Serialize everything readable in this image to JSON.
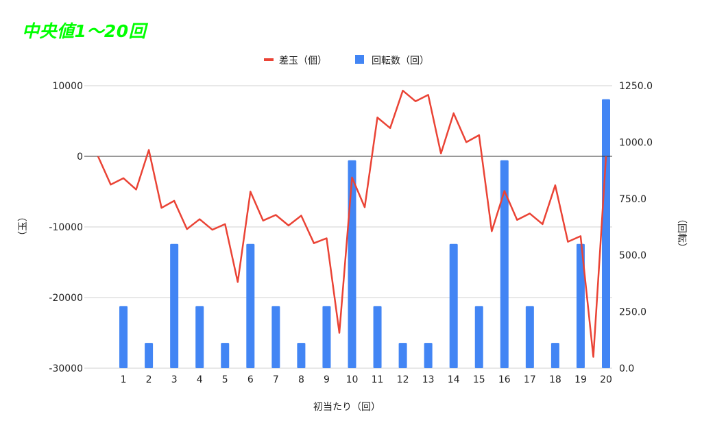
{
  "chart_data": {
    "type": "bar",
    "title": "中央値1～20回",
    "xlabel": "初当たり（回）",
    "ylabel_left": "（玉）",
    "ylabel_right": "（回転）",
    "categories": [
      "1",
      "2",
      "3",
      "4",
      "5",
      "6",
      "7",
      "8",
      "9",
      "10",
      "11",
      "12",
      "13",
      "14",
      "15",
      "16",
      "17",
      "18",
      "19",
      "20"
    ],
    "left_axis": {
      "min": -30000,
      "max": 10000,
      "ticks": [
        10000,
        0,
        -10000,
        -20000,
        -30000
      ],
      "tick_labels": [
        "10000",
        "0",
        "-10000",
        "-20000",
        "-30000"
      ]
    },
    "right_axis": {
      "min": 0,
      "max": 1250,
      "ticks": [
        1250,
        1000,
        750,
        500,
        250,
        0
      ],
      "tick_labels": [
        "1250.0",
        "1000.0",
        "750.0",
        "500.0",
        "250.0",
        "0.0"
      ]
    },
    "legend": {
      "position": "top",
      "items": [
        {
          "label": "差玉（個）",
          "color": "#ea4335",
          "kind": "line"
        },
        {
          "label": "回転数（回）",
          "color": "#4285f4",
          "kind": "bar"
        }
      ]
    },
    "series": [
      {
        "name": "回転数（回）",
        "type": "bar",
        "axis": "right",
        "color": "#4285f4",
        "values": [
          275,
          112,
          550,
          275,
          112,
          550,
          275,
          112,
          275,
          920,
          275,
          112,
          112,
          550,
          275,
          920,
          275,
          112,
          550,
          1190
        ]
      },
      {
        "name": "差玉（個）",
        "type": "line",
        "axis": "left",
        "color": "#ea4335",
        "x": [
          0,
          0.5,
          1,
          1.5,
          2,
          2.5,
          3,
          3.5,
          4,
          4.5,
          5,
          5.5,
          6,
          6.5,
          7,
          7.5,
          8,
          8.5,
          9,
          9.5,
          10,
          10.5,
          11,
          11.5,
          12,
          12.5,
          13,
          13.5,
          14,
          14.5,
          15,
          15.5,
          16,
          16.5,
          17,
          17.5,
          18,
          18.5,
          19,
          19.5,
          20
        ],
        "values": [
          0,
          -4000,
          -3100,
          -4700,
          900,
          -7300,
          -6300,
          -10300,
          -8900,
          -10400,
          -9600,
          -17800,
          -5000,
          -9100,
          -8300,
          -9800,
          -8400,
          -12300,
          -11600,
          -25000,
          -3000,
          -7200,
          5500,
          4000,
          9300,
          7800,
          8700,
          400,
          6100,
          2000,
          3000,
          -10600,
          -4900,
          -9000,
          -8100,
          -9600,
          -4100,
          -12100,
          -11300,
          -28400,
          0
        ]
      }
    ]
  }
}
